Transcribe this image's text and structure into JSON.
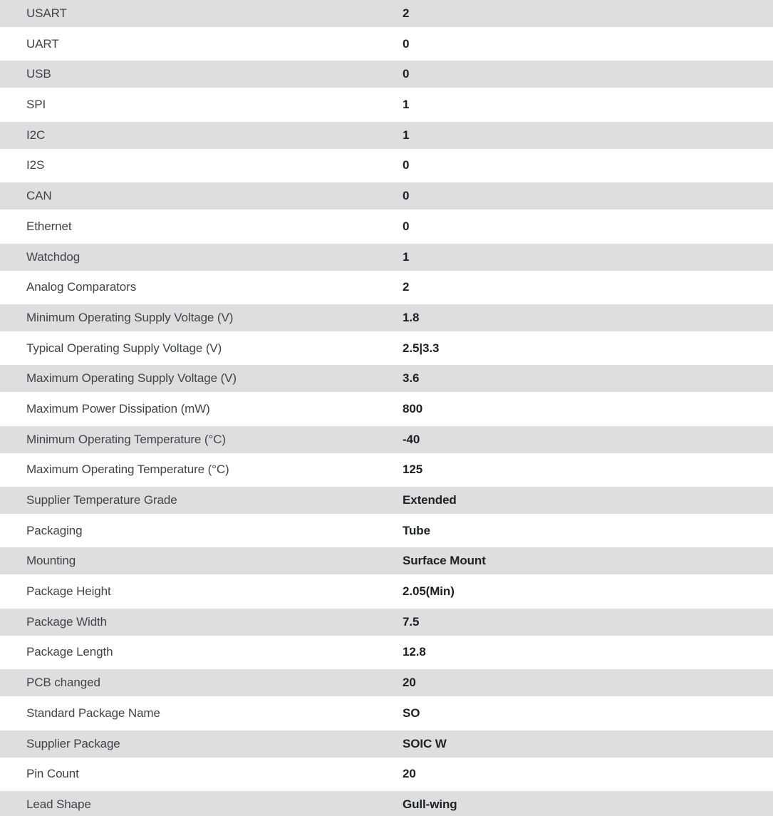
{
  "table": {
    "colors": {
      "alt_row_bg": "#dedede",
      "row_bg": "#ffffff",
      "label_text": "#414347",
      "value_text": "#1e2023"
    },
    "rows": [
      {
        "label": "USART",
        "value": "2"
      },
      {
        "label": "UART",
        "value": "0"
      },
      {
        "label": "USB",
        "value": "0"
      },
      {
        "label": "SPI",
        "value": "1"
      },
      {
        "label": "I2C",
        "value": "1"
      },
      {
        "label": "I2S",
        "value": "0"
      },
      {
        "label": "CAN",
        "value": "0"
      },
      {
        "label": "Ethernet",
        "value": "0"
      },
      {
        "label": "Watchdog",
        "value": "1"
      },
      {
        "label": "Analog Comparators",
        "value": "2"
      },
      {
        "label": "Minimum Operating Supply Voltage (V)",
        "value": "1.8"
      },
      {
        "label": "Typical Operating Supply Voltage (V)",
        "value": "2.5|3.3"
      },
      {
        "label": "Maximum Operating Supply Voltage (V)",
        "value": "3.6"
      },
      {
        "label": "Maximum Power Dissipation (mW)",
        "value": "800"
      },
      {
        "label": "Minimum Operating Temperature (°C)",
        "value": "-40"
      },
      {
        "label": "Maximum Operating Temperature (°C)",
        "value": "125"
      },
      {
        "label": "Supplier Temperature Grade",
        "value": "Extended"
      },
      {
        "label": "Packaging",
        "value": "Tube"
      },
      {
        "label": "Mounting",
        "value": "Surface Mount"
      },
      {
        "label": "Package Height",
        "value": "2.05(Min)"
      },
      {
        "label": "Package Width",
        "value": "7.5"
      },
      {
        "label": "Package Length",
        "value": "12.8"
      },
      {
        "label": "PCB changed",
        "value": "20"
      },
      {
        "label": "Standard Package Name",
        "value": "SO"
      },
      {
        "label": "Supplier Package",
        "value": "SOIC W"
      },
      {
        "label": "Pin Count",
        "value": "20"
      },
      {
        "label": "Lead Shape",
        "value": "Gull-wing"
      }
    ]
  }
}
